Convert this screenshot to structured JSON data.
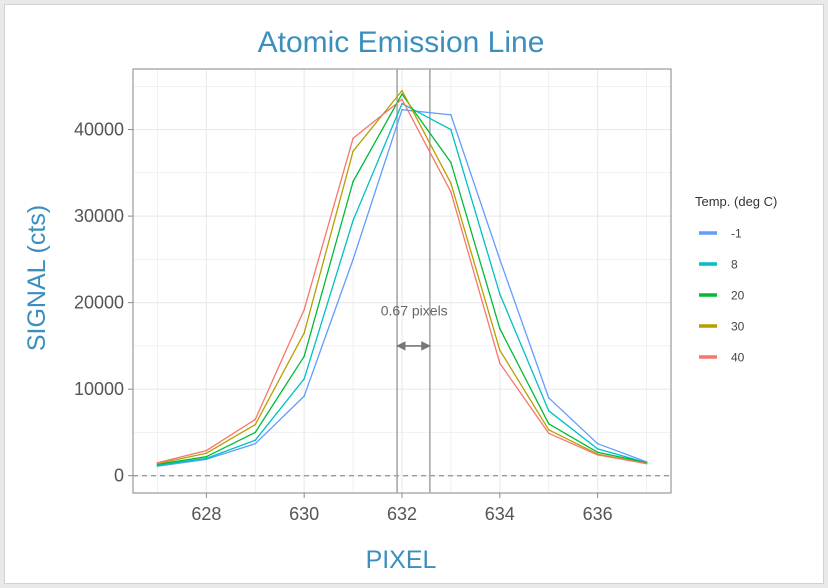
{
  "chart_data": {
    "type": "line",
    "title": "Atomic Emission Line",
    "xlabel": "PIXEL",
    "ylabel": "SIGNAL (cts)",
    "xlim": [
      626.5,
      637.5
    ],
    "ylim": [
      -2000,
      47000
    ],
    "x_ticks": [
      628,
      630,
      632,
      634,
      636
    ],
    "y_ticks": [
      0,
      10000,
      20000,
      30000,
      40000
    ],
    "grid": true,
    "legend": {
      "title": "Temp. (deg C)",
      "position": "right"
    },
    "x": [
      627,
      628,
      629,
      630,
      631,
      632,
      633,
      634,
      635,
      636,
      637
    ],
    "series": [
      {
        "name": "-1",
        "color": "#619cff",
        "values": [
          1100,
          1900,
          3700,
          9200,
          25000,
          42300,
          41700,
          25000,
          9000,
          3700,
          1600
        ]
      },
      {
        "name": "8",
        "color": "#00bfc4",
        "values": [
          1200,
          2000,
          4100,
          11200,
          29500,
          43000,
          40000,
          21000,
          7500,
          3100,
          1500
        ]
      },
      {
        "name": "20",
        "color": "#00ba38",
        "values": [
          1300,
          2200,
          5000,
          13800,
          34000,
          44100,
          36200,
          17000,
          6000,
          2700,
          1500
        ]
      },
      {
        "name": "30",
        "color": "#b79f00",
        "values": [
          1400,
          2600,
          5900,
          16500,
          37500,
          44500,
          33800,
          14500,
          5300,
          2500,
          1400
        ]
      },
      {
        "name": "40",
        "color": "#f8766d",
        "values": [
          1500,
          2900,
          6500,
          19200,
          39000,
          43500,
          32800,
          13000,
          4900,
          2400,
          1400
        ]
      }
    ],
    "reference_lines": {
      "x": [
        631.9,
        632.57
      ],
      "y": 0
    },
    "annotations": [
      {
        "text": "0.67 pixels",
        "x": 632.25,
        "y": 18500
      }
    ],
    "arrow": {
      "x1": 631.9,
      "x2": 632.57,
      "y": 15000
    }
  }
}
